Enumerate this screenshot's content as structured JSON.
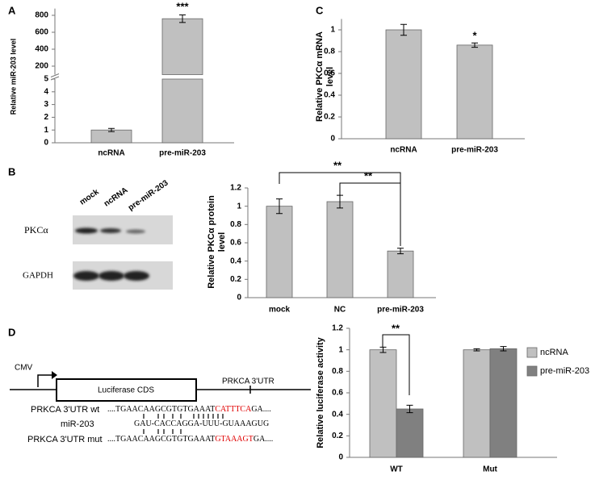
{
  "panel_labels": [
    "A",
    "B",
    "C",
    "D"
  ],
  "chart_data": [
    {
      "type": "bar",
      "ylabel": "Relative miR-203 level",
      "categories": [
        "ncRNA",
        "pre-miR-203"
      ],
      "series": [
        {
          "color": "#c0c0c0",
          "values": [
            1.0,
            760
          ],
          "errors": [
            0.12,
            45
          ]
        }
      ],
      "axis_segments": [
        {
          "ylim": [
            0,
            5
          ],
          "yticks": [
            0,
            1,
            2,
            3,
            4,
            5
          ]
        },
        {
          "ylim": [
            100,
            880
          ],
          "yticks": [
            200,
            400,
            600,
            800
          ]
        }
      ],
      "annotations": [
        "***"
      ]
    },
    {
      "type": "bar",
      "ylabel": "Relative PKCα protein level",
      "categories": [
        "mock",
        "NC",
        "pre-miR-203"
      ],
      "series": [
        {
          "color": "#c0c0c0",
          "values": [
            1.0,
            1.05,
            0.51
          ],
          "errors": [
            0.08,
            0.07,
            0.03
          ]
        }
      ],
      "ylim": [
        0,
        1.2
      ],
      "yticks": [
        0,
        0.2,
        0.4,
        0.6,
        0.8,
        1,
        1.2
      ],
      "annotations": [
        "**",
        "**"
      ]
    },
    {
      "type": "bar",
      "ylabel": "Relative PKCα mRNA level",
      "categories": [
        "ncRNA",
        "pre-miR-203"
      ],
      "series": [
        {
          "color": "#c0c0c0",
          "values": [
            1.0,
            0.86
          ],
          "errors": [
            0.05,
            0.02
          ]
        }
      ],
      "ylim": [
        0,
        1.1
      ],
      "yticks": [
        0,
        0.2,
        0.4,
        0.6,
        0.8,
        1
      ],
      "annotations": [
        "*"
      ]
    },
    {
      "type": "bar",
      "ylabel": "Relative luciferase activity",
      "categories": [
        "WT",
        "Mut"
      ],
      "series": [
        {
          "name": "ncRNA",
          "color": "#c0c0c0",
          "values": [
            1.0,
            1.0
          ],
          "errors": [
            0.025,
            0.01
          ]
        },
        {
          "name": "pre-miR-203",
          "color": "#808080",
          "values": [
            0.45,
            1.01
          ],
          "errors": [
            0.035,
            0.02
          ]
        }
      ],
      "ylim": [
        0,
        1.2
      ],
      "yticks": [
        0,
        0.2,
        0.4,
        0.6,
        0.8,
        1,
        1.2
      ],
      "legend": "right",
      "annotations": [
        "**"
      ]
    }
  ],
  "blot": {
    "lanes": [
      "mock",
      "ncRNA",
      "pre-miR-203"
    ],
    "rows": [
      "PKCα",
      "GAPDH"
    ]
  },
  "construct": {
    "promoter": "CMV",
    "cds": "Luciferase CDS",
    "utr": "PRKCA 3'UTR",
    "sequences": [
      {
        "label": "PRKCA 3'UTR wt",
        "parts": [
          "....TGAACAAGCGTGTGAAAT",
          "CATTTCA",
          "GA...."
        ]
      },
      {
        "label": "miR-203",
        "parts": [
          "GAU-CACCAGGA-UUU-GUAAAGUG"
        ]
      },
      {
        "label": "PRKCA 3'UTR mut",
        "parts": [
          "....TGAACAAGCGTGTGAAAT",
          "GTAAAGT",
          "GA...."
        ]
      }
    ]
  }
}
